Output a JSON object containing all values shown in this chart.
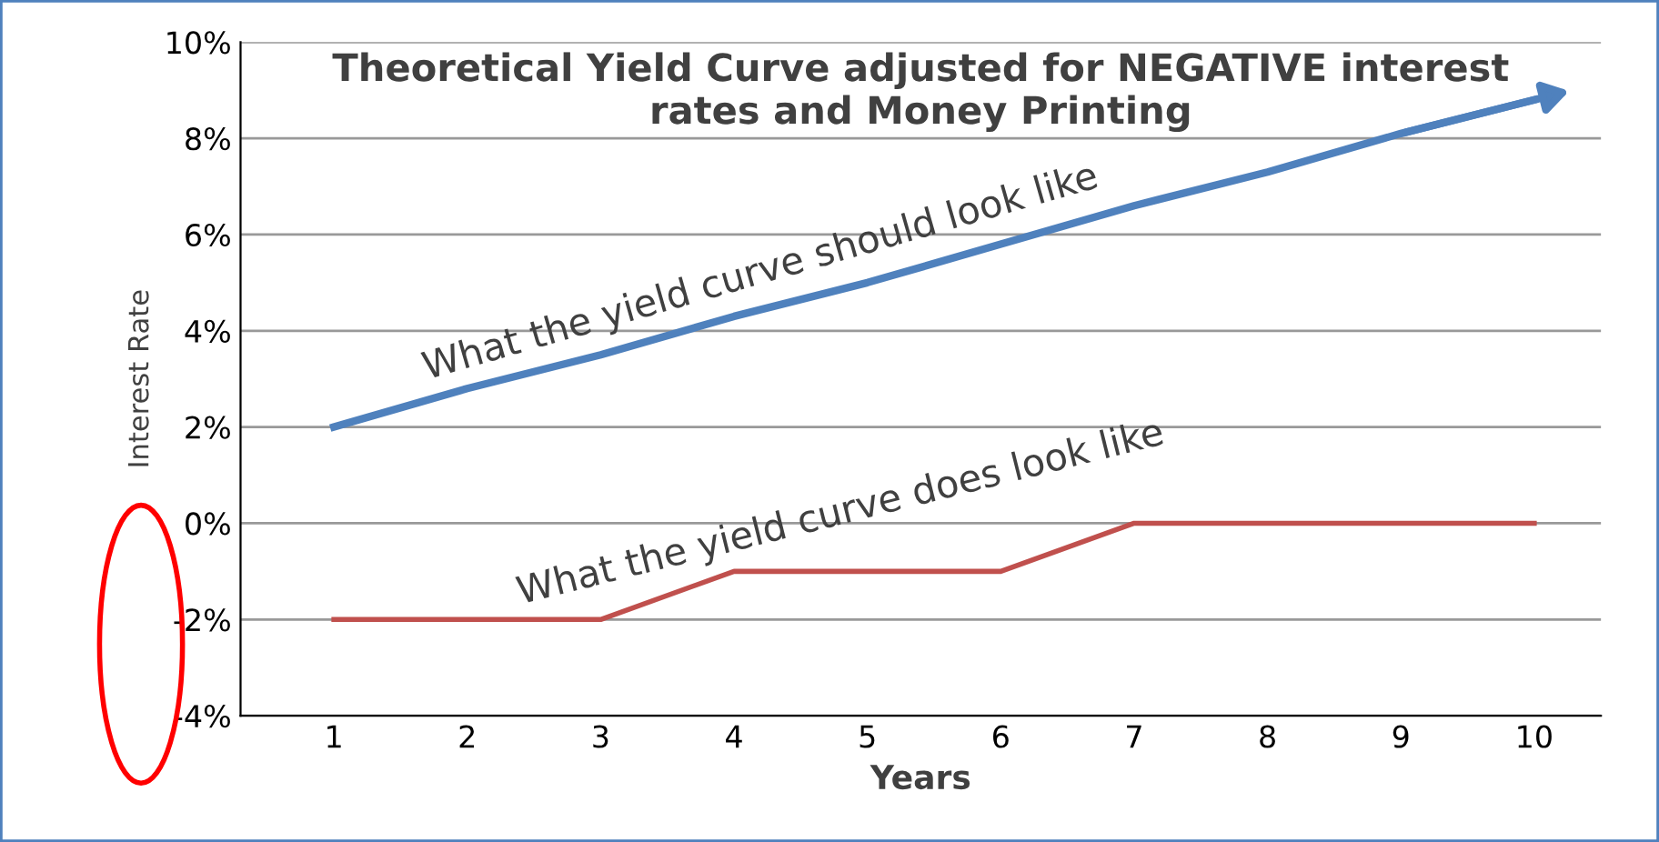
{
  "chart_data": {
    "type": "line",
    "title": "Theoretical Yield Curve adjusted for NEGATIVE interest\nrates and Money Printing",
    "xlabel": "Years",
    "ylabel": "Interest Rate",
    "categories": [
      "1",
      "2",
      "3",
      "4",
      "5",
      "6",
      "7",
      "8",
      "9",
      "10"
    ],
    "series": [
      {
        "color": "#4f81bd",
        "values": [
          2.0,
          2.8,
          3.5,
          4.3,
          5.0,
          5.8,
          6.6,
          7.3,
          8.1,
          8.8
        ]
      },
      {
        "color": "#c0504d",
        "values": [
          -2,
          -2,
          -2,
          -1,
          -1,
          -1,
          0,
          0,
          0,
          0
        ]
      }
    ],
    "annotations": [
      "What the yield curve should look like",
      "What the yield curve does look like"
    ],
    "ylim": [
      -4,
      10
    ],
    "yticks": [
      {
        "value": -4,
        "label": "-4%"
      },
      {
        "value": -2,
        "label": "-2%"
      },
      {
        "value": 0,
        "label": "0%"
      },
      {
        "value": 2,
        "label": "2%"
      },
      {
        "value": 4,
        "label": "4%"
      },
      {
        "value": 6,
        "label": "6%"
      },
      {
        "value": 8,
        "label": "8%"
      },
      {
        "value": 10,
        "label": "10%"
      }
    ],
    "grid": "y",
    "marker": "none",
    "line_style": "solid"
  }
}
